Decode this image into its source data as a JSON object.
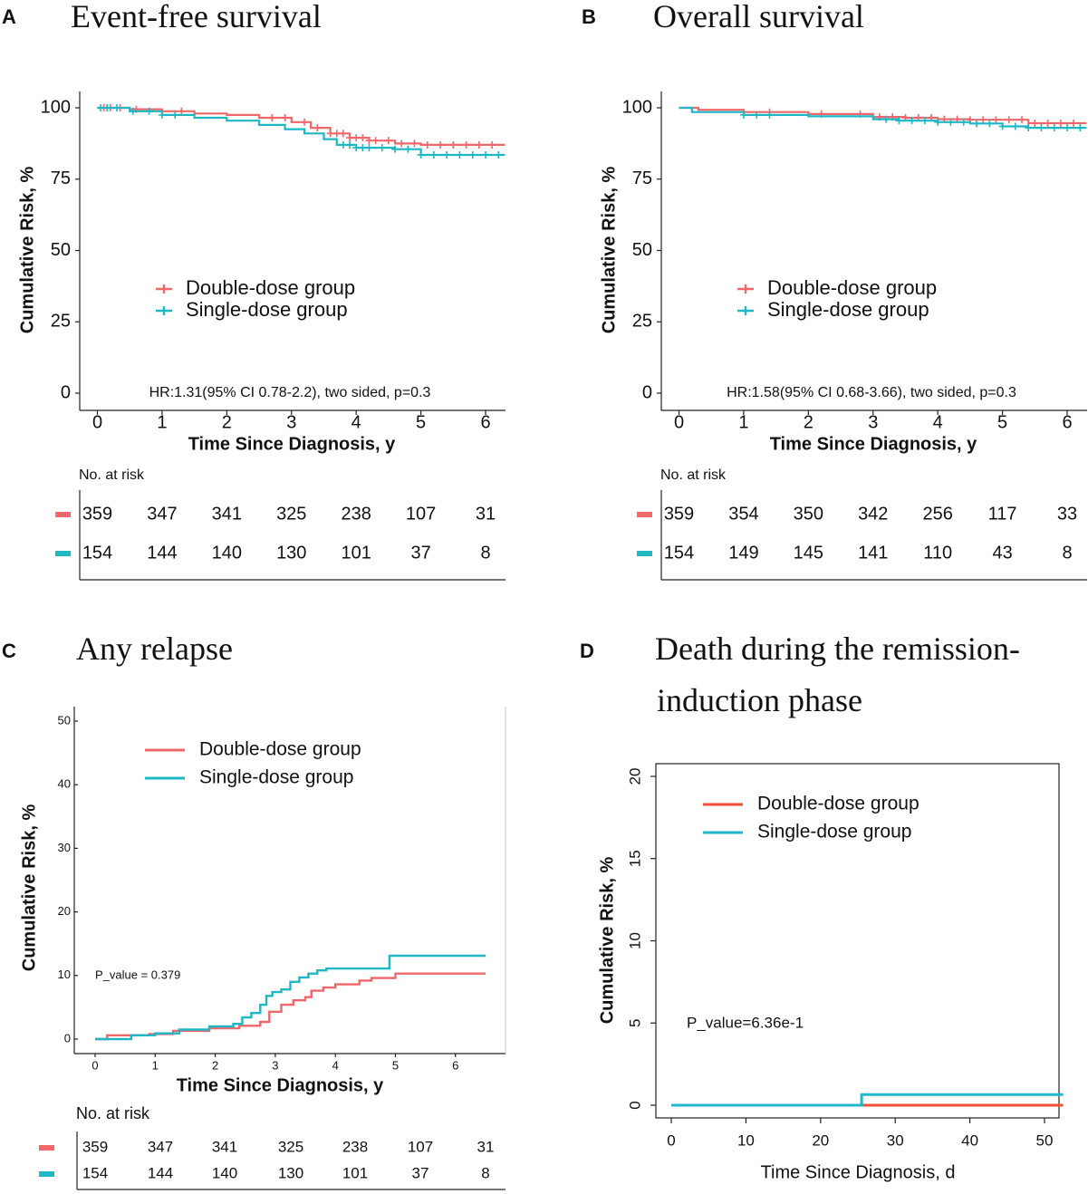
{
  "colors": {
    "double": "#f0676a",
    "single": "#1eb8c4",
    "double_d": "#f04e3a",
    "single_d": "#1fb8cc",
    "axis": "#222222"
  },
  "panels": {
    "A": {
      "letter": "A",
      "title": "Event-free survival"
    },
    "B": {
      "letter": "B",
      "title": "Overall survival"
    },
    "C": {
      "letter": "C",
      "title": "Any relapse"
    },
    "D": {
      "letter": "D",
      "title": "Death during the remission-induction phase",
      "title_line1": "Death during the remission-",
      "title_line2": "induction phase"
    }
  },
  "chart_data": [
    {
      "id": "A",
      "type": "line",
      "title": "Event-free survival",
      "xlabel": "Time Since Diagnosis, y",
      "ylabel": "Cumulative Risk, %",
      "xlim": [
        0,
        6.3
      ],
      "ylim": [
        0,
        100
      ],
      "xticks": [
        "0",
        "1",
        "2",
        "3",
        "4",
        "5",
        "6"
      ],
      "yticks": [
        "0",
        "25",
        "50",
        "75",
        "100"
      ],
      "legend": [
        "Double-dose group",
        "Single-dose group"
      ],
      "legend_position": "center-left",
      "annotation": "HR:1.31(95% CI 0.78-2.2), two sided, p=0.3",
      "series": [
        {
          "name": "Double-dose group",
          "x": [
            0,
            0.5,
            1,
            1.5,
            2,
            2.5,
            3,
            3.3,
            3.6,
            3.9,
            4.2,
            4.6,
            5,
            6.3
          ],
          "y": [
            100,
            99.5,
            98.8,
            98,
            97.5,
            96.5,
            95,
            93,
            91,
            89.5,
            88.5,
            87.5,
            87,
            87
          ],
          "censor_x": [
            0.1,
            0.2,
            0.35,
            0.6,
            1.3,
            2.7,
            2.9,
            3.2,
            3.4,
            3.6,
            3.7,
            3.8,
            3.9,
            4,
            4.1,
            4.2,
            4.3,
            4.5,
            4.7,
            4.9,
            5.1,
            5.3,
            5.5,
            5.7,
            5.9,
            6.1
          ]
        },
        {
          "name": "Single-dose group",
          "x": [
            0,
            0.5,
            1,
            1.5,
            2,
            2.5,
            2.9,
            3.2,
            3.5,
            3.7,
            4,
            4.6,
            5,
            6.3
          ],
          "y": [
            100,
            98.8,
            97.5,
            96.5,
            95.5,
            94,
            92.5,
            91,
            89,
            87,
            86,
            85.5,
            83.5,
            83.5
          ],
          "censor_x": [
            0.05,
            0.15,
            0.3,
            0.55,
            0.8,
            1,
            1.2,
            3.8,
            3.9,
            4,
            4.1,
            4.2,
            4.4,
            4.6,
            4.8,
            5,
            5.2,
            5.4,
            5.6,
            5.8,
            6,
            6.2
          ]
        }
      ],
      "risk_table": {
        "header": "No. at risk",
        "rows": [
          {
            "group": "Double-dose group",
            "values": [
              "359",
              "347",
              "341",
              "325",
              "238",
              "107",
              "31"
            ]
          },
          {
            "group": "Single-dose group",
            "values": [
              "154",
              "144",
              "140",
              "130",
              "101",
              "37",
              "8"
            ]
          }
        ]
      }
    },
    {
      "id": "B",
      "type": "line",
      "title": "Overall survival",
      "xlabel": "Time Since Diagnosis, y",
      "ylabel": "Cumulative Risk, %",
      "xlim": [
        0,
        6.3
      ],
      "ylim": [
        0,
        100
      ],
      "xticks": [
        "0",
        "1",
        "2",
        "3",
        "4",
        "5",
        "6"
      ],
      "yticks": [
        "0",
        "25",
        "50",
        "75",
        "100"
      ],
      "legend": [
        "Double-dose group",
        "Single-dose group"
      ],
      "legend_position": "center-left",
      "annotation": "HR:1.58(95% CI 0.68-3.66), two sided, p=0.3",
      "series": [
        {
          "name": "Double-dose group",
          "x": [
            0,
            0.3,
            1,
            2,
            3,
            3.5,
            4,
            4.5,
            5.4,
            6.3
          ],
          "y": [
            100,
            99.3,
            98.5,
            97.8,
            96.8,
            96.5,
            96,
            95.8,
            94.6,
            94.6
          ],
          "censor_x": [
            1.4,
            2.2,
            2.8,
            3.1,
            3.3,
            3.5,
            3.7,
            3.9,
            4.1,
            4.3,
            4.5,
            4.7,
            4.9,
            5.1,
            5.3,
            5.5,
            5.7,
            5.9,
            6.1
          ]
        },
        {
          "name": "Single-dose group",
          "x": [
            0,
            0.2,
            1,
            2,
            3,
            3.4,
            4,
            4.5,
            5,
            5.4,
            6.3
          ],
          "y": [
            100,
            98.5,
            97.5,
            97,
            96,
            95.5,
            95,
            94.5,
            93.5,
            93,
            93
          ],
          "censor_x": [
            1,
            1.2,
            1.4,
            3.2,
            3.4,
            3.6,
            3.8,
            4,
            4.2,
            4.4,
            4.6,
            4.8,
            5,
            5.2,
            5.4,
            5.6,
            5.8,
            6,
            6.2
          ]
        }
      ],
      "risk_table": {
        "header": "No. at risk",
        "rows": [
          {
            "group": "Double-dose group",
            "values": [
              "359",
              "354",
              "350",
              "342",
              "256",
              "117",
              "33"
            ]
          },
          {
            "group": "Single-dose group",
            "values": [
              "154",
              "149",
              "145",
              "141",
              "110",
              "43",
              "8"
            ]
          }
        ]
      }
    },
    {
      "id": "C",
      "type": "line",
      "title": "Any relapse",
      "xlabel": "Time Since Diagnosis, y",
      "ylabel": "Cumulative Risk, %",
      "xlim": [
        -0.35,
        6.75
      ],
      "ylim": [
        0,
        50
      ],
      "xticks": [
        "0",
        "1",
        "2",
        "3",
        "4",
        "5",
        "6"
      ],
      "yticks": [
        "0",
        "10",
        "20",
        "30",
        "40",
        "50"
      ],
      "legend": [
        "Double-dose group",
        "Single-dose group"
      ],
      "legend_position": "top-center",
      "annotation": "P_value = 0.379",
      "series": [
        {
          "name": "Double-dose group",
          "x": [
            0,
            0.2,
            0.9,
            1.3,
            1.9,
            2.4,
            2.75,
            2.9,
            3.1,
            3.3,
            3.5,
            3.6,
            3.8,
            4,
            4.4,
            4.6,
            5,
            6.5
          ],
          "y": [
            0,
            0.6,
            0.8,
            1.3,
            1.7,
            2.1,
            2.7,
            4.3,
            5.4,
            6.1,
            6.6,
            7.6,
            8.1,
            8.6,
            9.2,
            9.6,
            10.3,
            10.3
          ]
        },
        {
          "name": "Single-dose group",
          "x": [
            0,
            0.6,
            1,
            1.4,
            1.9,
            2.3,
            2.45,
            2.6,
            2.75,
            2.85,
            2.95,
            3.1,
            3.25,
            3.4,
            3.55,
            3.7,
            3.85,
            4.1,
            4.9,
            6.5
          ],
          "y": [
            0,
            0.6,
            0.9,
            1.5,
            2,
            2.4,
            3.4,
            4.1,
            5.4,
            6.8,
            7.4,
            7.8,
            9,
            9.7,
            10.3,
            10.8,
            11.1,
            11.1,
            13.1,
            13.1
          ]
        }
      ],
      "risk_table": {
        "header": "No. at risk",
        "rows": [
          {
            "group": "Double-dose group",
            "values": [
              "359",
              "347",
              "341",
              "325",
              "238",
              "107",
              "31"
            ]
          },
          {
            "group": "Single-dose group",
            "values": [
              "154",
              "144",
              "140",
              "130",
              "101",
              "37",
              "8"
            ]
          }
        ]
      }
    },
    {
      "id": "D",
      "type": "line",
      "title": "Death during the remission-induction phase",
      "xlabel": "Time Since Diagnosis, d",
      "ylabel": "Cumulative Risk, %",
      "xlim": [
        -2,
        52.5
      ],
      "ylim": [
        -0.8,
        20.6
      ],
      "xticks": [
        "0",
        "10",
        "20",
        "30",
        "40",
        "50"
      ],
      "yticks": [
        "0",
        "5",
        "10",
        "15",
        "20"
      ],
      "legend": [
        "Double-dose group",
        "Single-dose group"
      ],
      "legend_position": "top-left",
      "annotation": "P_value=6.36e-1",
      "series": [
        {
          "name": "Double-dose group",
          "x": [
            0,
            52.5
          ],
          "y": [
            0,
            0
          ]
        },
        {
          "name": "Single-dose group",
          "x": [
            0,
            25.5,
            25.5,
            52.5
          ],
          "y": [
            0,
            0,
            0.65,
            0.65
          ]
        }
      ]
    }
  ]
}
